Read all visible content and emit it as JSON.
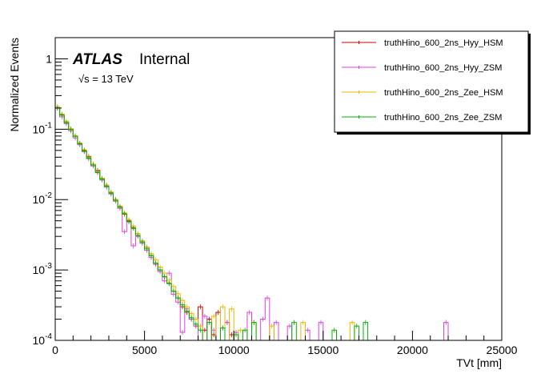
{
  "chart_data": {
    "type": "line",
    "style": "step-histogram",
    "title": "",
    "xlabel": "TVt [mm]",
    "ylabel": "Normalized Events",
    "xlim": [
      0,
      25000
    ],
    "ylim": [
      0.0001,
      2
    ],
    "yscale": "log",
    "grid": false,
    "legend_position": "top-right",
    "x_ticks": [
      "0",
      "5000",
      "10000",
      "15000",
      "20000",
      "25000"
    ],
    "y_ticks": [
      {
        "value": 0.0001,
        "base": "10",
        "exp": "-4"
      },
      {
        "value": 0.001,
        "base": "10",
        "exp": "-3"
      },
      {
        "value": 0.01,
        "base": "10",
        "exp": "-2"
      },
      {
        "value": 0.1,
        "base": "10",
        "exp": "-1"
      },
      {
        "value": 1,
        "base": "1",
        "exp": ""
      }
    ],
    "bin_width": 250,
    "annotations": {
      "experiment": "ATLAS",
      "status": "Internal",
      "energy_sqrt": "√s",
      "energy_value": " = 13 TeV"
    },
    "series": [
      {
        "name": "truthHino_600_2ns_Hyy_HSM",
        "color": "#cc0000",
        "bins": [
          [
            0,
            0.2
          ],
          [
            250,
            0.16
          ],
          [
            500,
            0.125
          ],
          [
            750,
            0.1
          ],
          [
            1000,
            0.08
          ],
          [
            1250,
            0.063
          ],
          [
            1500,
            0.05
          ],
          [
            1750,
            0.041
          ],
          [
            2000,
            0.031
          ],
          [
            2250,
            0.026
          ],
          [
            2500,
            0.02
          ],
          [
            2750,
            0.016
          ],
          [
            3000,
            0.0125
          ],
          [
            3250,
            0.01
          ],
          [
            3500,
            0.0079
          ],
          [
            3750,
            0.0063
          ],
          [
            4000,
            0.005
          ],
          [
            4250,
            0.004
          ],
          [
            4500,
            0.0031
          ],
          [
            4750,
            0.0025
          ],
          [
            5000,
            0.0021
          ],
          [
            5250,
            0.0016
          ],
          [
            5500,
            0.00125
          ],
          [
            5750,
            0.001
          ],
          [
            6000,
            0.0008
          ],
          [
            6250,
            0.00065
          ],
          [
            6500,
            0.0005
          ],
          [
            6750,
            0.0004
          ],
          [
            7000,
            0.0003
          ],
          [
            7250,
            0.00025
          ],
          [
            7500,
            0.0002
          ],
          [
            7750,
            0.00016
          ],
          [
            8000,
            0.0003
          ],
          [
            8250,
            0.00014
          ],
          [
            8500,
            0.0002
          ],
          [
            8750,
            0.00012
          ],
          [
            9000,
            0.00025
          ],
          [
            9250,
            0.00015
          ],
          [
            9500,
            0.00018
          ],
          [
            9750,
            0.00012
          ]
        ]
      },
      {
        "name": "truthHino_600_2ns_Hyy_ZSM",
        "color": "#e040e0",
        "bins": [
          [
            0,
            0.2
          ],
          [
            250,
            0.15
          ],
          [
            500,
            0.12
          ],
          [
            750,
            0.095
          ],
          [
            1000,
            0.075
          ],
          [
            1250,
            0.06
          ],
          [
            1500,
            0.048
          ],
          [
            1750,
            0.038
          ],
          [
            2000,
            0.03
          ],
          [
            2250,
            0.024
          ],
          [
            2500,
            0.019
          ],
          [
            2750,
            0.015
          ],
          [
            3000,
            0.012
          ],
          [
            3250,
            0.0095
          ],
          [
            3500,
            0.0075
          ],
          [
            3750,
            0.0035
          ],
          [
            4000,
            0.0048
          ],
          [
            4250,
            0.0022
          ],
          [
            4500,
            0.003
          ],
          [
            4750,
            0.0024
          ],
          [
            5000,
            0.0019
          ],
          [
            5250,
            0.0015
          ],
          [
            5500,
            0.0012
          ],
          [
            5750,
            0.00095
          ],
          [
            6000,
            0.0007
          ],
          [
            6250,
            0.0009
          ],
          [
            6500,
            0.00045
          ],
          [
            6750,
            0.00035
          ],
          [
            7000,
            0.00013
          ],
          [
            7250,
            0.00028
          ],
          [
            7500,
            0.0002
          ],
          [
            7750,
            0.00016
          ],
          [
            8250,
            0.00022
          ],
          [
            8750,
            0.00014
          ],
          [
            9500,
            0.00018
          ],
          [
            10000,
            0.00013
          ],
          [
            10750,
            0.00025
          ],
          [
            11500,
            0.0002
          ],
          [
            11750,
            0.0004
          ],
          [
            12250,
            0.00018
          ],
          [
            13000,
            0.00016
          ],
          [
            14000,
            0.00014
          ],
          [
            14750,
            0.00018
          ],
          [
            21750,
            0.00018
          ]
        ]
      },
      {
        "name": "truthHino_600_2ns_Zee_HSM",
        "color": "#e6b800",
        "bins": [
          [
            0,
            0.21
          ],
          [
            250,
            0.165
          ],
          [
            500,
            0.13
          ],
          [
            750,
            0.102
          ],
          [
            1000,
            0.081
          ],
          [
            1250,
            0.064
          ],
          [
            1500,
            0.051
          ],
          [
            1750,
            0.04
          ],
          [
            2000,
            0.032
          ],
          [
            2250,
            0.025
          ],
          [
            2500,
            0.02
          ],
          [
            2750,
            0.016
          ],
          [
            3000,
            0.0128
          ],
          [
            3250,
            0.01
          ],
          [
            3500,
            0.0081
          ],
          [
            3750,
            0.0065
          ],
          [
            4000,
            0.0052
          ],
          [
            4250,
            0.0042
          ],
          [
            4500,
            0.0033
          ],
          [
            4750,
            0.0026
          ],
          [
            5000,
            0.0021
          ],
          [
            5250,
            0.0017
          ],
          [
            5500,
            0.0014
          ],
          [
            5750,
            0.0011
          ],
          [
            6000,
            0.0009
          ],
          [
            6250,
            0.00072
          ],
          [
            6500,
            0.00058
          ],
          [
            6750,
            0.00046
          ],
          [
            7000,
            0.00037
          ],
          [
            7250,
            0.0003
          ],
          [
            7500,
            0.00024
          ],
          [
            7750,
            0.0002
          ],
          [
            8000,
            0.00016
          ],
          [
            8750,
            0.00022
          ],
          [
            9250,
            0.0003
          ],
          [
            9750,
            0.00028
          ],
          [
            10250,
            0.00014
          ],
          [
            11000,
            0.00018
          ],
          [
            12000,
            0.00016
          ],
          [
            13750,
            0.00018
          ],
          [
            16500,
            0.00018
          ]
        ]
      },
      {
        "name": "truthHino_600_2ns_Zee_ZSM",
        "color": "#00b000",
        "bins": [
          [
            0,
            0.2
          ],
          [
            250,
            0.158
          ],
          [
            500,
            0.124
          ],
          [
            750,
            0.099
          ],
          [
            1000,
            0.079
          ],
          [
            1250,
            0.062
          ],
          [
            1500,
            0.049
          ],
          [
            1750,
            0.039
          ],
          [
            2000,
            0.031
          ],
          [
            2250,
            0.0245
          ],
          [
            2500,
            0.0195
          ],
          [
            2750,
            0.0155
          ],
          [
            3000,
            0.0123
          ],
          [
            3250,
            0.0098
          ],
          [
            3500,
            0.0078
          ],
          [
            3750,
            0.0062
          ],
          [
            4000,
            0.0049
          ],
          [
            4250,
            0.0039
          ],
          [
            4500,
            0.0031
          ],
          [
            4750,
            0.0025
          ],
          [
            5000,
            0.002
          ],
          [
            5250,
            0.0016
          ],
          [
            5500,
            0.00125
          ],
          [
            5750,
            0.001
          ],
          [
            6000,
            0.0008
          ],
          [
            6250,
            0.00064
          ],
          [
            6500,
            0.0005
          ],
          [
            6750,
            0.0004
          ],
          [
            7000,
            0.00032
          ],
          [
            7250,
            0.00026
          ],
          [
            7500,
            0.00021
          ],
          [
            7750,
            0.00017
          ],
          [
            8000,
            0.00014
          ],
          [
            8500,
            0.00018
          ],
          [
            9250,
            0.00015
          ],
          [
            10000,
            0.00012
          ],
          [
            10500,
            0.00014
          ],
          [
            11000,
            0.00018
          ],
          [
            13250,
            0.00018
          ],
          [
            15500,
            0.00014
          ],
          [
            16750,
            0.00016
          ],
          [
            17250,
            0.00018
          ]
        ]
      }
    ]
  }
}
